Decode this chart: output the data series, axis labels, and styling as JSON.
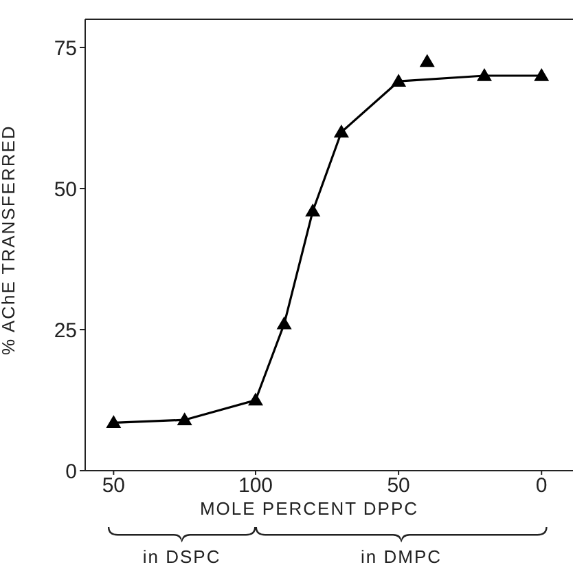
{
  "chart_data": [
    {
      "type": "line",
      "ylabel": "% AChE TRANSFERRED",
      "annotations": [
        "in DSPC"
      ],
      "xlim": [
        40,
        100
      ],
      "xticks": [
        50,
        100
      ],
      "ylim": [
        0,
        80
      ],
      "yticks": [
        0,
        25,
        50,
        75
      ],
      "grid": false,
      "marker": "triangle",
      "line_style": "solid",
      "series": [
        {
          "color": "#000000",
          "x": [
            50,
            75,
            100
          ],
          "values": [
            8.5,
            9,
            12.5
          ]
        }
      ]
    },
    {
      "type": "line",
      "xlabel": "MOLE PERCENT DPPC",
      "annotations": [
        "in DMPC"
      ],
      "xlim": [
        100,
        -11
      ],
      "xticks": [
        50,
        0
      ],
      "ylim": [
        0,
        80
      ],
      "tick_labels": "x",
      "grid": false,
      "marker": "triangle",
      "line_style": "solid",
      "series": [
        {
          "color": "#000000",
          "x": [
            100,
            90,
            80,
            70,
            50,
            20,
            0
          ],
          "values": [
            12.5,
            26,
            46,
            60,
            69,
            70,
            70
          ]
        },
        {
          "type": "scatter",
          "color": "#000000",
          "x": [
            40
          ],
          "values": [
            72.5
          ]
        }
      ]
    }
  ]
}
